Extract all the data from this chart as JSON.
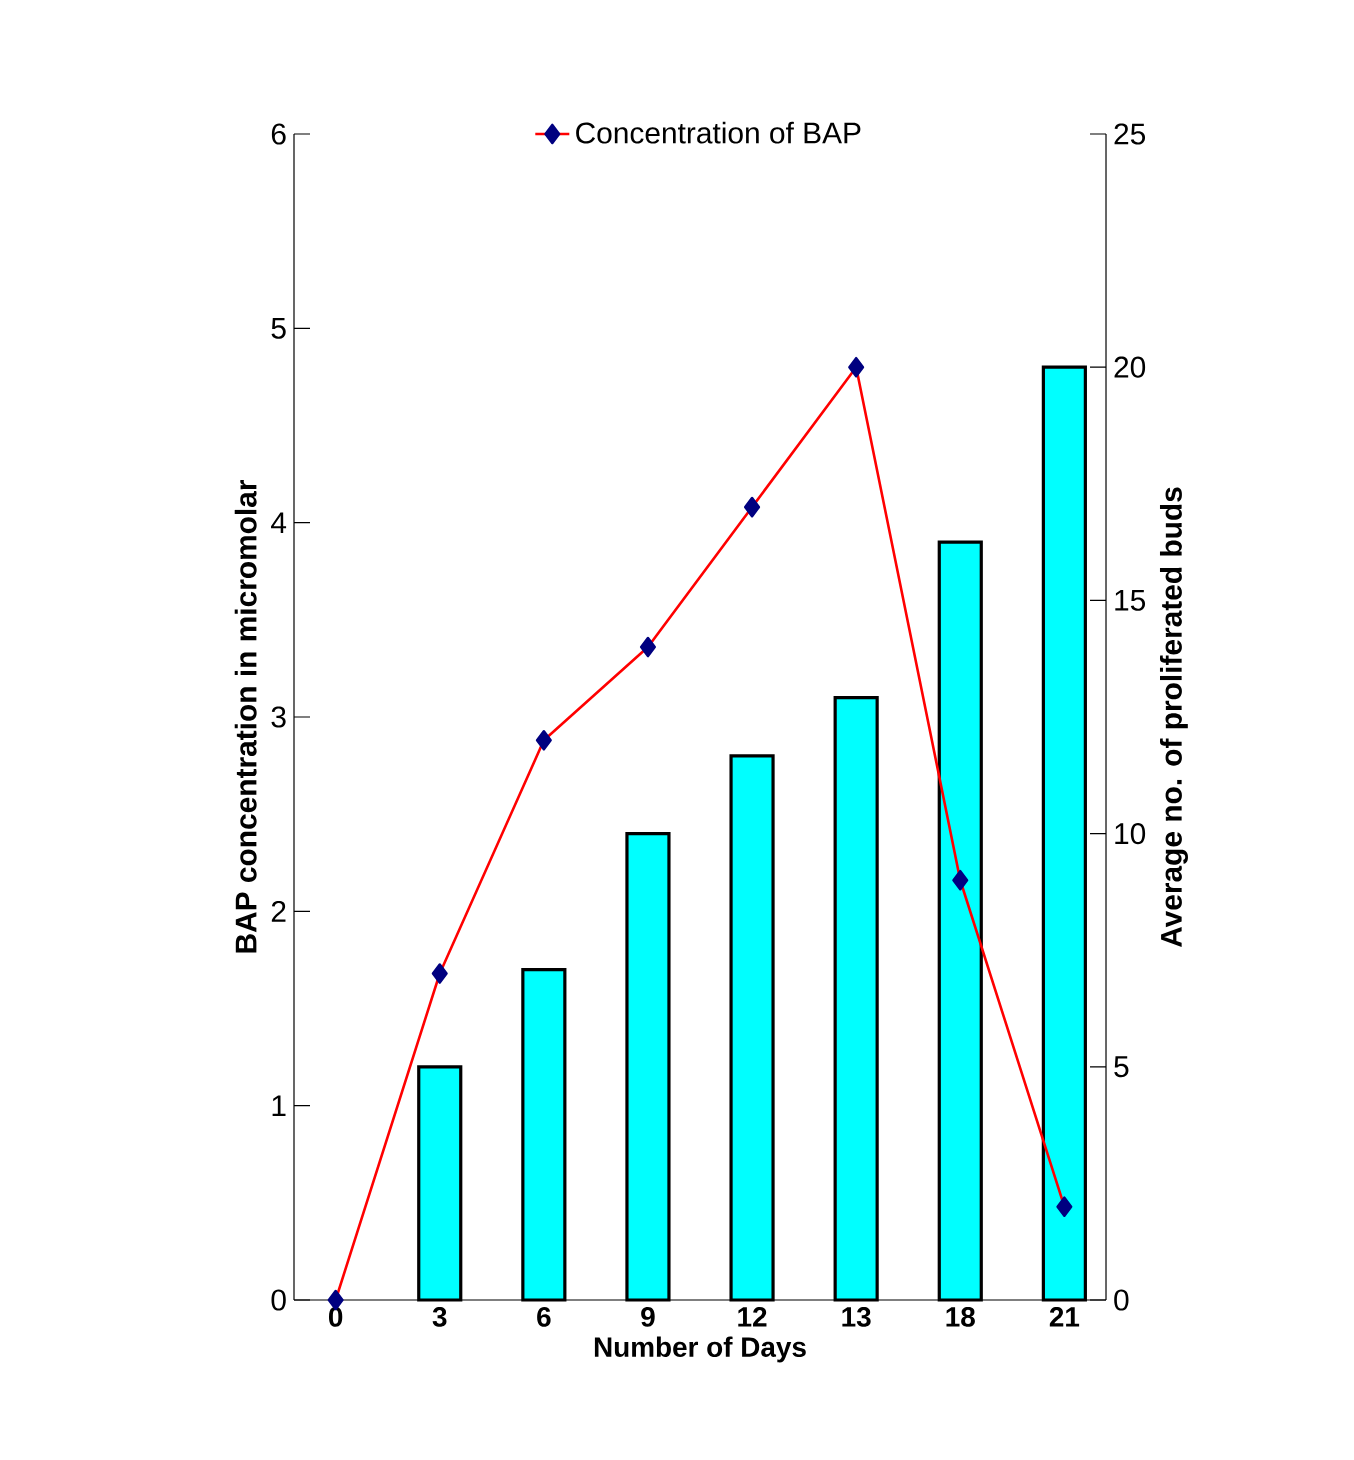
{
  "chart_data": {
    "type": "bar",
    "categories": [
      "0",
      "3",
      "6",
      "9",
      "12",
      "13",
      "18",
      "21"
    ],
    "xlabel": "Number of Days",
    "ylabel": "BAP concentration in micromolar",
    "y2label": "Average no. of proliferated buds",
    "ylim": [
      0,
      6
    ],
    "yticks": [
      0,
      1,
      2,
      3,
      4,
      5,
      6
    ],
    "y2lim": [
      0,
      25
    ],
    "y2ticks": [
      0,
      5,
      10,
      15,
      20,
      25
    ],
    "legend": "top",
    "series": [
      {
        "color": "#00ffff",
        "values": [
          null,
          1.2,
          1.7,
          2.4,
          2.8,
          3.1,
          3.9,
          4.8
        ]
      },
      {
        "type": "line",
        "name": "Concentration of BAP",
        "color": "#ff0000",
        "axis": "y2",
        "marker": "diamond",
        "values": [
          0,
          7,
          12,
          14,
          17,
          20,
          9,
          2
        ]
      }
    ]
  }
}
